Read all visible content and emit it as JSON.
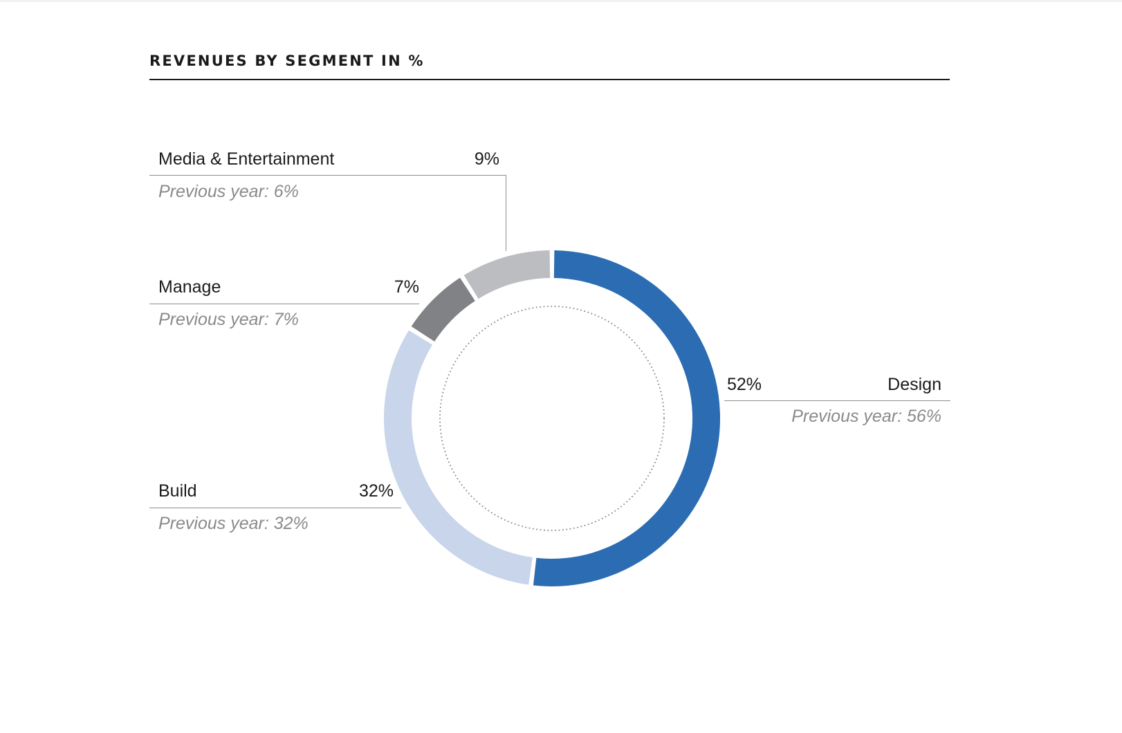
{
  "chart_data": {
    "type": "pie",
    "title": "REVENUES BY SEGMENT IN %",
    "style": "donut",
    "segments": [
      {
        "name": "Design",
        "value": 52,
        "value_label": "52%",
        "previous_year": "Previous year: 56%",
        "color": "#2b6cb3"
      },
      {
        "name": "Build",
        "value": 32,
        "value_label": "32%",
        "previous_year": "Previous year: 32%",
        "color": "#c8d5ea"
      },
      {
        "name": "Manage",
        "value": 7,
        "value_label": "7%",
        "previous_year": "Previous year: 7%",
        "color": "#818285"
      },
      {
        "name": "Media & Entertainment",
        "value": 9,
        "value_label": "9%",
        "previous_year": "Previous year: 6%",
        "color": "#bcbdc0"
      }
    ],
    "order": "clockwise from top",
    "inner_circle": "dotted",
    "grid": false
  }
}
